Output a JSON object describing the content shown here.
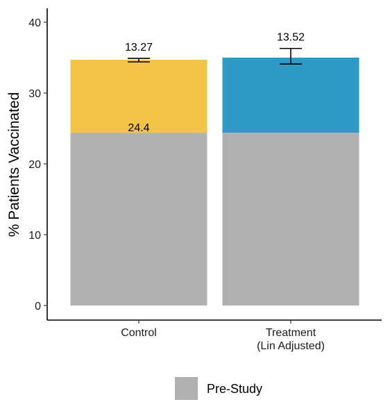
{
  "chart_data": {
    "type": "bar",
    "stacked": true,
    "categories": [
      [
        "Control"
      ],
      [
        "Treatment",
        "(Lin Adjusted)"
      ]
    ],
    "ylabel": "% Patients Vaccinated",
    "ylim": [
      0,
      42
    ],
    "yticks": [
      0,
      10,
      20,
      30,
      40
    ],
    "grid": false,
    "series": [
      {
        "name": "Pre-Study",
        "values": [
          24.4,
          24.4
        ],
        "color": "#b0b0b0",
        "in_legend": true
      },
      {
        "values": [
          10.3,
          10.6
        ],
        "colors": [
          "#f1c447",
          "#2e9ac5"
        ],
        "in_legend": false
      }
    ],
    "data_labels": [
      {
        "category": 0,
        "text": "24.4",
        "y": 24.4
      },
      {
        "category": 0,
        "text": "13.27",
        "y": 35.8
      },
      {
        "category": 1,
        "text": "13.52",
        "y": 37.2
      }
    ],
    "error_bars": [
      {
        "category": 0,
        "low": 34.4,
        "high": 34.9
      },
      {
        "category": 1,
        "low": 34.1,
        "high": 36.3
      }
    ],
    "legend": {
      "position": "bottom"
    }
  }
}
